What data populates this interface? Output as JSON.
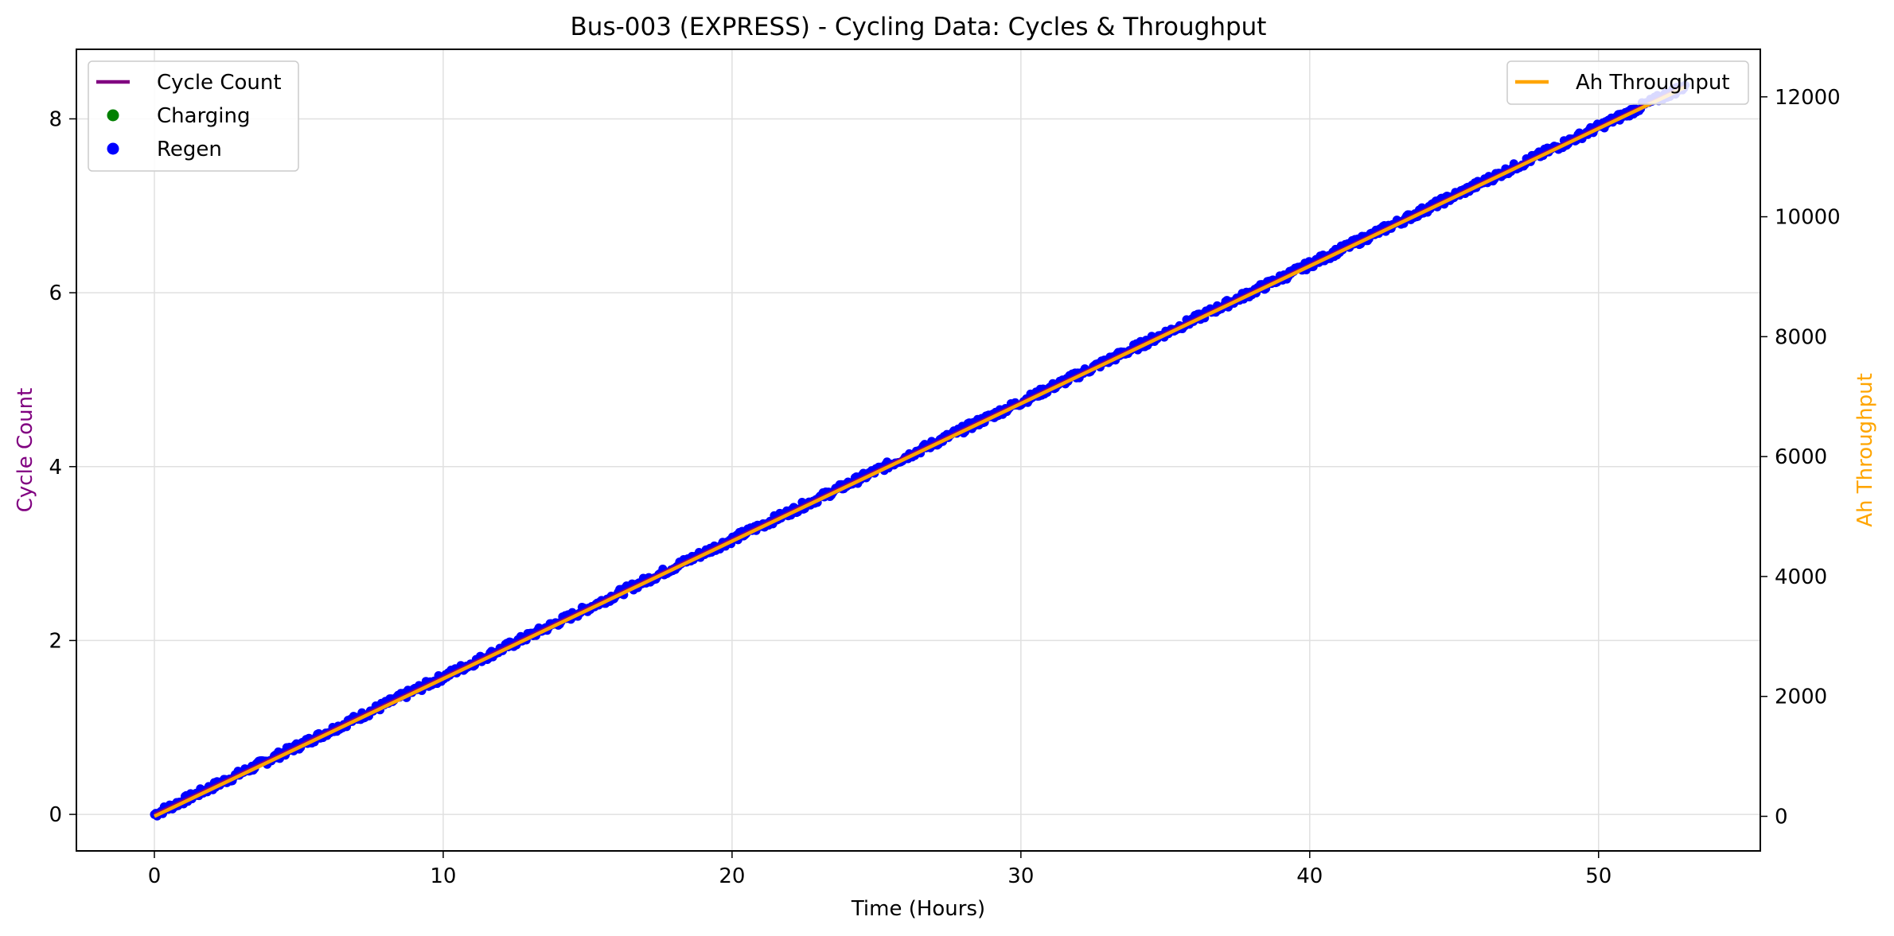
{
  "chart_data": {
    "type": "line",
    "title": "Bus-003 (EXPRESS) - Cycling Data: Cycles & Throughput",
    "xlabel": "Time (Hours)",
    "ylabel_left": "Cycle Count",
    "ylabel_right": "Ah Throughput",
    "xlim": [
      -2.7,
      55.6
    ],
    "ylim_left": [
      -0.42,
      8.8
    ],
    "ylim_right": [
      -577,
      12793
    ],
    "x_ticks": [
      0,
      10,
      20,
      30,
      40,
      50
    ],
    "y_left_ticks": [
      0,
      2,
      4,
      6,
      8
    ],
    "y_right_ticks": [
      0,
      2000,
      4000,
      6000,
      8000,
      10000,
      12000
    ],
    "grid": true,
    "colors": {
      "cycle_count": "#800080",
      "charging": "#008000",
      "regen": "#0000ff",
      "ah_throughput": "#ffa500"
    },
    "legend_left": {
      "placement": "upper-left",
      "entries": [
        {
          "label": "Cycle Count",
          "marker": "line",
          "color": "#800080"
        },
        {
          "label": "Charging",
          "marker": "dot",
          "color": "#008000"
        },
        {
          "label": "Regen",
          "marker": "dot",
          "color": "#0000ff"
        }
      ]
    },
    "legend_right": {
      "placement": "upper-right",
      "entries": [
        {
          "label": "Ah Throughput",
          "marker": "line",
          "color": "#ffa500"
        }
      ]
    },
    "series": [
      {
        "name": "Cycle Count",
        "axis": "left",
        "kind": "line",
        "x": [
          0,
          53
        ],
        "y": [
          0,
          8.38
        ]
      },
      {
        "name": "Regen",
        "axis": "left",
        "kind": "scatter",
        "x_range": [
          0,
          53
        ],
        "y_range": [
          0,
          8.38
        ]
      },
      {
        "name": "Charging",
        "axis": "left",
        "kind": "scatter",
        "x": [],
        "y": []
      },
      {
        "name": "Ah Throughput",
        "axis": "right",
        "kind": "line",
        "x": [
          0,
          53
        ],
        "y": [
          0,
          12160
        ]
      }
    ]
  }
}
